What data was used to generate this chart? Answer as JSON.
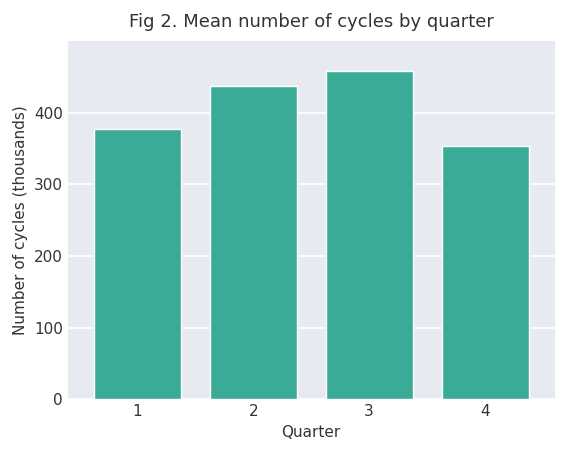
{
  "title": "Fig 2. Mean number of cycles by quarter",
  "xlabel": "Quarter",
  "ylabel": "Number of cycles (thousands)",
  "categories": [
    "1",
    "2",
    "3",
    "4"
  ],
  "values": [
    377,
    437,
    458,
    353
  ],
  "bar_color": "#3aab97",
  "axes_bg_color": "#e8eaf2",
  "figure_bg_color": "#ffffff",
  "ylim": [
    0,
    500
  ],
  "yticks": [
    0,
    100,
    200,
    300,
    400
  ],
  "title_fontsize": 13,
  "label_fontsize": 11,
  "tick_fontsize": 11,
  "bar_width": 0.75
}
